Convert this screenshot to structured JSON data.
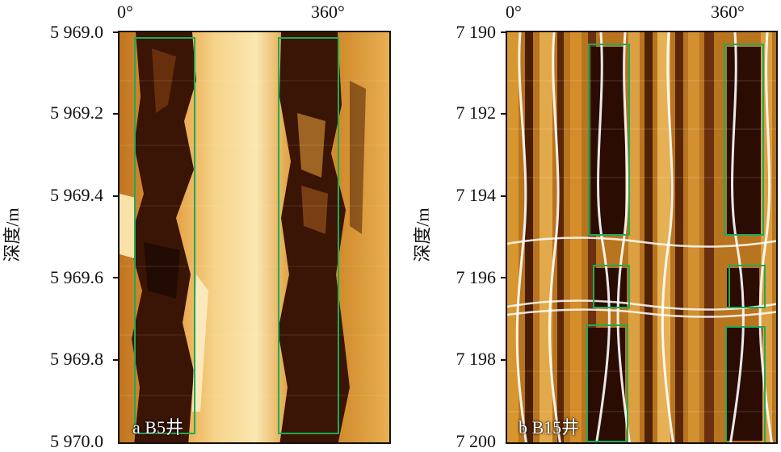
{
  "left": {
    "xlabels": [
      "0°",
      "360°"
    ],
    "yticks": [
      "5 969.0",
      "5 969.2",
      "5 969.4",
      "5 969.6",
      "5 969.8",
      "5 970.0"
    ],
    "ytitle": "深度/m",
    "caption": "a B5井"
  },
  "right": {
    "xlabels": [
      "0°",
      "360°"
    ],
    "yticks": [
      "7 190",
      "7 192",
      "7 194",
      "7 196",
      "7 198",
      "7 200"
    ],
    "ytitle": "深度/m",
    "caption": "b B15井"
  },
  "colors": {
    "box": "#1faa55",
    "light": "#f5c36a",
    "dark": "#3a1405",
    "mid": "#c77a1a"
  }
}
